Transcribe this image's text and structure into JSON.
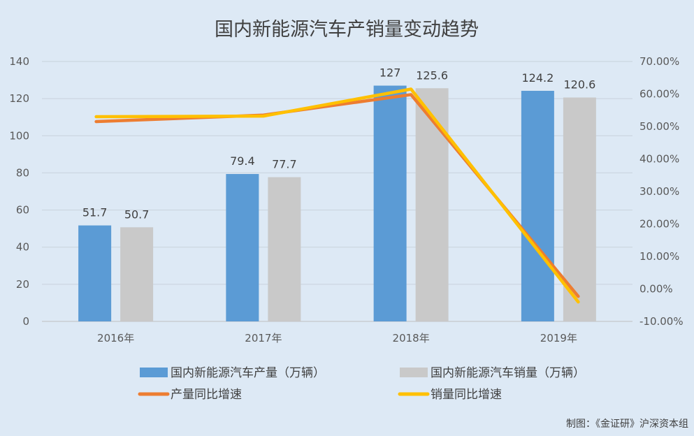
{
  "colors": {
    "background": "#dde9f5",
    "production_bar": "#5b9bd5",
    "sales_bar": "#c9c9c9",
    "production_growth_line": "#ed7d31",
    "sales_growth_line": "#ffc000",
    "gridline": "#c8d2dc"
  },
  "chart_data": {
    "type": "bar",
    "title": "国内新能源汽车产销量变动趋势",
    "categories": [
      "2016年",
      "2017年",
      "2018年",
      "2019年"
    ],
    "ylim": [
      0,
      140
    ],
    "yticks": [
      0,
      20,
      40,
      60,
      80,
      100,
      120,
      140
    ],
    "ytick_labels": [
      "0",
      "20",
      "40",
      "60",
      "80",
      "100",
      "120",
      "140"
    ],
    "y2lim": [
      -0.1,
      0.7
    ],
    "y2ticks": [
      -0.1,
      0.0,
      0.1,
      0.2,
      0.3,
      0.4,
      0.5,
      0.6,
      0.7
    ],
    "y2tick_labels": [
      "-10.00%",
      "0.00%",
      "10.00%",
      "20.00%",
      "30.00%",
      "40.00%",
      "50.00%",
      "60.00%",
      "70.00%"
    ],
    "grid": true,
    "legend_position": "bottom",
    "series": [
      {
        "name": "国内新能源汽车产量（万辆）",
        "kind": "bar",
        "axis": "left",
        "values": [
          51.7,
          79.4,
          127,
          124.2
        ],
        "value_labels": [
          "51.7",
          "79.4",
          "127",
          "124.2"
        ]
      },
      {
        "name": "国内新能源汽车销量（万辆）",
        "kind": "bar",
        "axis": "right",
        "values": [
          50.7,
          77.7,
          125.6,
          120.6
        ],
        "value_labels": [
          "50.7",
          "77.7",
          "125.6",
          "120.6"
        ]
      },
      {
        "name": "产量同比增速",
        "kind": "line",
        "axis": "right",
        "values": [
          0.515,
          0.535,
          0.598,
          -0.023
        ]
      },
      {
        "name": "销量同比增速",
        "kind": "line",
        "axis": "right",
        "values": [
          0.53,
          0.532,
          0.615,
          -0.04
        ]
      }
    ]
  },
  "credit": "制图：《金证研》沪深资本组"
}
